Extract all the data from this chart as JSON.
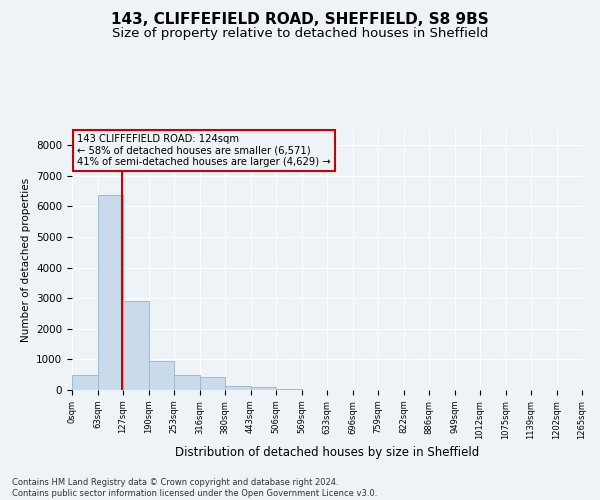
{
  "title1": "143, CLIFFEFIELD ROAD, SHEFFIELD, S8 9BS",
  "title2": "Size of property relative to detached houses in Sheffield",
  "xlabel": "Distribution of detached houses by size in Sheffield",
  "ylabel": "Number of detached properties",
  "footer1": "Contains HM Land Registry data © Crown copyright and database right 2024.",
  "footer2": "Contains public sector information licensed under the Open Government Licence v3.0.",
  "bin_labels": [
    "0sqm",
    "63sqm",
    "127sqm",
    "190sqm",
    "253sqm",
    "316sqm",
    "380sqm",
    "443sqm",
    "506sqm",
    "569sqm",
    "633sqm",
    "696sqm",
    "759sqm",
    "822sqm",
    "886sqm",
    "949sqm",
    "1012sqm",
    "1075sqm",
    "1139sqm",
    "1202sqm",
    "1265sqm"
  ],
  "bar_heights": [
    480,
    6380,
    2900,
    950,
    490,
    430,
    145,
    95,
    45,
    0,
    0,
    0,
    0,
    0,
    0,
    0,
    0,
    0,
    0,
    0
  ],
  "bar_color": "#c9daea",
  "bar_edge_color": "#a0b8d0",
  "property_size": 124,
  "property_label": "143 CLIFFEFIELD ROAD: 124sqm",
  "annotation_line1": "← 58% of detached houses are smaller (6,571)",
  "annotation_line2": "41% of semi-detached houses are larger (4,629) →",
  "vline_color": "#cc0000",
  "annotation_box_color": "#cc0000",
  "ylim": [
    0,
    8500
  ],
  "yticks": [
    0,
    1000,
    2000,
    3000,
    4000,
    5000,
    6000,
    7000,
    8000
  ],
  "bg_color": "#eef3f8",
  "grid_color": "#ffffff",
  "title1_fontsize": 11,
  "title2_fontsize": 9.5
}
